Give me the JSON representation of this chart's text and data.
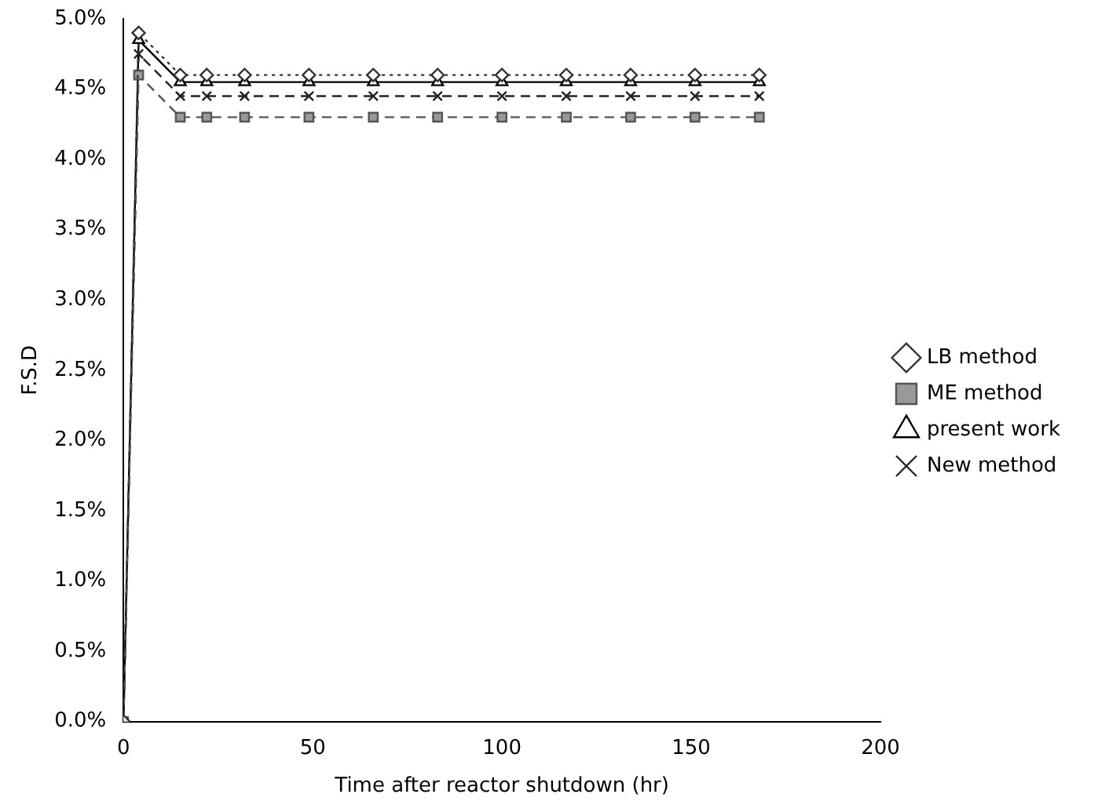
{
  "chart_data": {
    "type": "line",
    "xlabel": "Time after reactor shutdown (hr)",
    "ylabel": "F.S.D",
    "x": [
      0,
      4,
      15,
      22,
      32,
      49,
      66,
      83,
      100,
      117,
      134,
      151,
      168
    ],
    "xlim": [
      0,
      200
    ],
    "xticks": [
      0,
      50,
      100,
      150,
      200
    ],
    "ylim": [
      0,
      5
    ],
    "yticks": [
      {
        "value": 0,
        "label": "0.0%"
      },
      {
        "value": 0.5,
        "label": "0.5%"
      },
      {
        "value": 1,
        "label": "1.0%"
      },
      {
        "value": 1.5,
        "label": "1.5%"
      },
      {
        "value": 2,
        "label": "2.0%"
      },
      {
        "value": 2.5,
        "label": "2.5%"
      },
      {
        "value": 3,
        "label": "3.0%"
      },
      {
        "value": 3.5,
        "label": "3.5%"
      },
      {
        "value": 4,
        "label": "4.0%"
      },
      {
        "value": 4.5,
        "label": "4.5%"
      },
      {
        "value": 5,
        "label": "5.0%"
      }
    ],
    "grid": false,
    "legend": "right",
    "series": [
      {
        "name": "LB method",
        "color": "#333333",
        "marker": "diamond",
        "line_style": "dotted",
        "values": [
          0,
          4.9,
          4.6,
          4.6,
          4.6,
          4.6,
          4.6,
          4.6,
          4.6,
          4.6,
          4.6,
          4.6,
          4.6
        ]
      },
      {
        "name": "ME method",
        "color": "#555555",
        "marker": "square",
        "line_style": "dashed",
        "values": [
          0,
          4.6,
          4.3,
          4.3,
          4.3,
          4.3,
          4.3,
          4.3,
          4.3,
          4.3,
          4.3,
          4.3,
          4.3
        ]
      },
      {
        "name": "present work",
        "color": "#000000",
        "marker": "triangle",
        "line_style": "solid",
        "values": [
          0,
          4.85,
          4.55,
          4.55,
          4.55,
          4.55,
          4.55,
          4.55,
          4.55,
          4.55,
          4.55,
          4.55,
          4.55
        ]
      },
      {
        "name": "New method",
        "color": "#222222",
        "marker": "cross",
        "line_style": "dashed",
        "values": [
          0,
          4.75,
          4.45,
          4.45,
          4.45,
          4.45,
          4.45,
          4.45,
          4.45,
          4.45,
          4.45,
          4.45,
          4.45
        ]
      }
    ]
  }
}
